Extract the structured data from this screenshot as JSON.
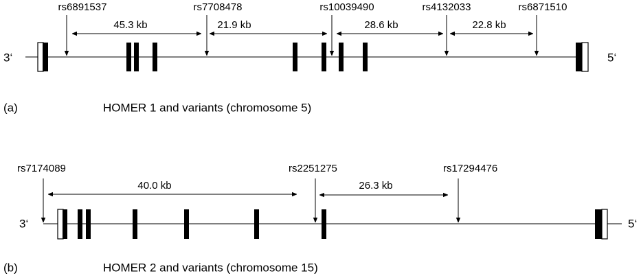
{
  "panels": [
    {
      "label": "(a)",
      "title": "HOMER 1 and variants (chromosome 5)",
      "left_end": "3‘",
      "right_end": "5‘",
      "snps": [
        "rs6891537",
        "rs7708478",
        "rs10039490",
        "rs4132033",
        "rs6871510"
      ],
      "distances": [
        "45.3 kb",
        "21.9 kb",
        "28.6 kb",
        "22.8 kb"
      ]
    },
    {
      "label": "(b)",
      "title": "HOMER 2 and variants (chromosome 15)",
      "left_end": "3‘",
      "right_end": "5‘",
      "snps": [
        "rs7174089",
        "rs2251275",
        "rs17294476"
      ],
      "distances": [
        "40.0 kb",
        "26.3 kb"
      ]
    }
  ]
}
